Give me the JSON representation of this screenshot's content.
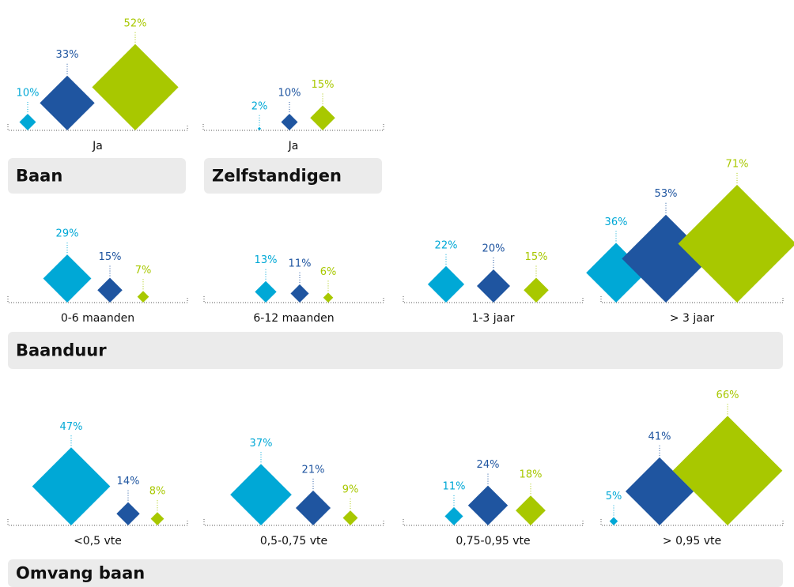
{
  "chart_data": [
    {
      "type": "diamond",
      "title": "Baan",
      "categories": [
        "Ja"
      ],
      "series": [
        {
          "color": "#00a8d6",
          "values": [
            10
          ],
          "value_labels": [
            "10%"
          ]
        },
        {
          "color": "#1f55a0",
          "values": [
            33
          ],
          "value_labels": [
            "33%"
          ]
        },
        {
          "color": "#a8c800",
          "values": [
            52
          ],
          "value_labels": [
            "52%"
          ]
        }
      ]
    },
    {
      "type": "diamond",
      "title": "Zelfstandigen",
      "categories": [
        "Ja"
      ],
      "series": [
        {
          "color": "#00a8d6",
          "values": [
            2
          ],
          "value_labels": [
            "2%"
          ]
        },
        {
          "color": "#1f55a0",
          "values": [
            10
          ],
          "value_labels": [
            "10%"
          ]
        },
        {
          "color": "#a8c800",
          "values": [
            15
          ],
          "value_labels": [
            "15%"
          ]
        }
      ]
    },
    {
      "type": "diamond",
      "title": "Baanduur",
      "categories": [
        "0-6 maanden",
        "6-12 maanden",
        "1-3 jaar",
        "> 3 jaar"
      ],
      "series": [
        {
          "color": "#00a8d6",
          "values": [
            29,
            13,
            22,
            36
          ],
          "value_labels": [
            "29%",
            "13%",
            "22%",
            "36%"
          ]
        },
        {
          "color": "#1f55a0",
          "values": [
            15,
            11,
            20,
            53
          ],
          "value_labels": [
            "15%",
            "11%",
            "20%",
            "53%"
          ]
        },
        {
          "color": "#a8c800",
          "values": [
            7,
            6,
            15,
            71
          ],
          "value_labels": [
            "7%",
            "6%",
            "15%",
            "71%"
          ]
        }
      ]
    },
    {
      "type": "diamond",
      "title": "Omvang baan",
      "categories": [
        "<0,5 vte",
        "0,5-0,75 vte",
        "0,75-0,95 vte",
        "> 0,95 vte"
      ],
      "series": [
        {
          "color": "#00a8d6",
          "values": [
            47,
            37,
            11,
            5
          ],
          "value_labels": [
            "47%",
            "37%",
            "11%",
            "5%"
          ]
        },
        {
          "color": "#1f55a0",
          "values": [
            14,
            21,
            24,
            41
          ],
          "value_labels": [
            "14%",
            "21%",
            "24%",
            "41%"
          ]
        },
        {
          "color": "#a8c800",
          "values": [
            8,
            9,
            18,
            66
          ],
          "value_labels": [
            "8%",
            "9%",
            "18%",
            "66%"
          ]
        }
      ]
    }
  ]
}
